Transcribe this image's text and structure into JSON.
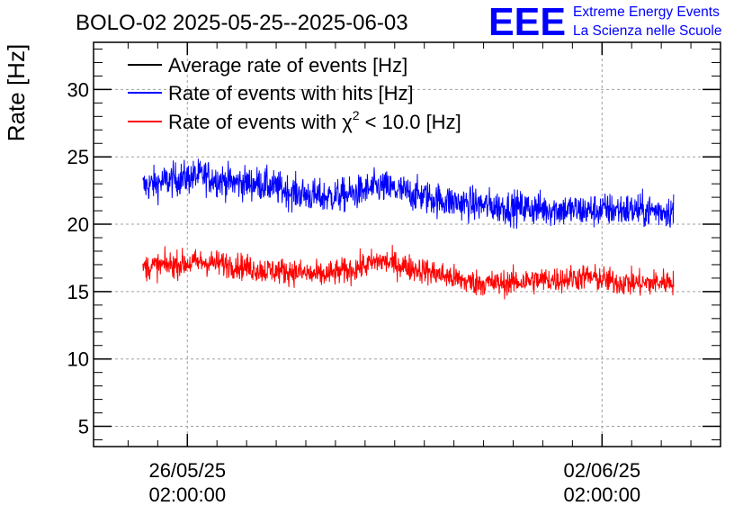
{
  "chart_data": {
    "type": "line",
    "title": "BOLO-02 2025-05-25--2025-06-03",
    "ylabel": "Rate [Hz]",
    "xlabel": "",
    "ylim": [
      3.5,
      33.5
    ],
    "yticks": [
      5,
      10,
      15,
      20,
      25,
      30
    ],
    "x_range": [
      "2025-05-24 12:00:00",
      "2025-06-04 02:00:00"
    ],
    "x_ticks": [
      {
        "at": "2025-05-26 02:00:00",
        "date_label": "26/05/25",
        "time_label": "02:00:00"
      },
      {
        "at": "2025-06-02 02:00:00",
        "date_label": "02/06/25",
        "time_label": "02:00:00"
      }
    ],
    "grid": true,
    "legend_position": "top-left",
    "series": [
      {
        "name": "Average rate of events [Hz]",
        "color": "#000000",
        "start": "2025-05-25 08:00:00",
        "end": "2025-06-03 07:00:00",
        "x": [],
        "values": []
      },
      {
        "name": "Rate of events with hits [Hz]",
        "color": "#0000ff",
        "start": "2025-05-25 08:00:00",
        "end": "2025-06-03 07:00:00",
        "x": [
          "2025-05-25 08:00",
          "2025-05-25 20:00",
          "2025-05-26 08:00",
          "2025-05-26 20:00",
          "2025-05-27 08:00",
          "2025-05-27 20:00",
          "2025-05-28 08:00",
          "2025-05-28 20:00",
          "2025-05-29 08:00",
          "2025-05-29 20:00",
          "2025-05-30 08:00",
          "2025-05-30 20:00",
          "2025-05-31 08:00",
          "2025-05-31 20:00",
          "2025-06-01 08:00",
          "2025-06-01 20:00",
          "2025-06-02 08:00",
          "2025-06-02 20:00",
          "2025-06-03 07:00"
        ],
        "values": [
          22.8,
          23.3,
          23.6,
          23.1,
          23.0,
          22.4,
          22.0,
          22.2,
          22.8,
          22.3,
          21.8,
          21.5,
          21.3,
          21.2,
          21.1,
          21.0,
          21.1,
          21.0,
          21.0
        ],
        "noise": 0.9
      },
      {
        "name": "Rate of events with χ² < 10.0 [Hz]",
        "legend_main": "Rate of events with χ",
        "legend_sup": "2",
        "legend_tail": " < 10.0 [Hz]",
        "color": "#ff0000",
        "start": "2025-05-25 08:00:00",
        "end": "2025-06-03 07:00:00",
        "x": [
          "2025-05-25 08:00",
          "2025-05-25 20:00",
          "2025-05-26 08:00",
          "2025-05-26 20:00",
          "2025-05-27 08:00",
          "2025-05-27 20:00",
          "2025-05-28 08:00",
          "2025-05-28 20:00",
          "2025-05-29 08:00",
          "2025-05-29 20:00",
          "2025-05-30 08:00",
          "2025-05-30 20:00",
          "2025-05-31 08:00",
          "2025-05-31 20:00",
          "2025-06-01 08:00",
          "2025-06-01 20:00",
          "2025-06-02 08:00",
          "2025-06-02 20:00",
          "2025-06-03 07:00"
        ],
        "values": [
          16.8,
          17.0,
          17.2,
          17.0,
          16.6,
          16.5,
          16.2,
          16.6,
          17.3,
          16.8,
          16.3,
          15.7,
          15.6,
          15.8,
          15.9,
          16.1,
          15.7,
          15.6,
          15.8
        ],
        "noise": 0.7
      }
    ]
  },
  "logo": {
    "letters": "EEE",
    "line1": "Extreme Energy Events",
    "line2": "La Scienza nelle Scuole",
    "color": "#0000ff"
  }
}
